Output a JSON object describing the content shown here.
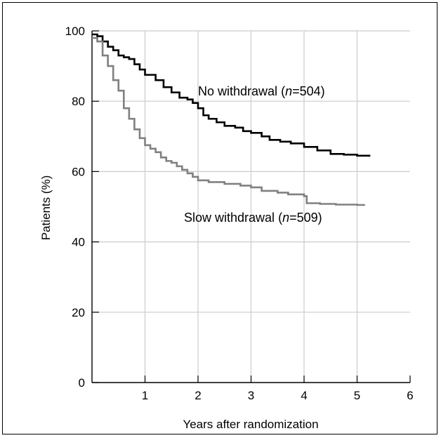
{
  "chart_data": {
    "type": "line",
    "xlabel": "Years after randomization",
    "ylabel": "Patients (%)",
    "xlim": [
      0,
      6
    ],
    "ylim": [
      0,
      100
    ],
    "x_ticks": [
      "1",
      "2",
      "3",
      "4",
      "5",
      "6"
    ],
    "y_ticks": [
      "0",
      "20",
      "40",
      "60",
      "80",
      "100"
    ],
    "grid": true,
    "series": [
      {
        "name": "No withdrawal",
        "n": "504",
        "color": "#000000",
        "points": [
          [
            0.0,
            99
          ],
          [
            0.1,
            98.5
          ],
          [
            0.2,
            97
          ],
          [
            0.3,
            95.5
          ],
          [
            0.4,
            94.5
          ],
          [
            0.5,
            93
          ],
          [
            0.6,
            92.5
          ],
          [
            0.7,
            92
          ],
          [
            0.8,
            90.5
          ],
          [
            0.9,
            89
          ],
          [
            1.0,
            87.5
          ],
          [
            1.2,
            86
          ],
          [
            1.35,
            84
          ],
          [
            1.5,
            82.5
          ],
          [
            1.65,
            81
          ],
          [
            1.8,
            80.5
          ],
          [
            1.9,
            79.5
          ],
          [
            2.0,
            78
          ],
          [
            2.1,
            76
          ],
          [
            2.2,
            75
          ],
          [
            2.35,
            74
          ],
          [
            2.5,
            73
          ],
          [
            2.7,
            72.5
          ],
          [
            2.85,
            71.5
          ],
          [
            3.0,
            71
          ],
          [
            3.2,
            70
          ],
          [
            3.35,
            69
          ],
          [
            3.55,
            68.5
          ],
          [
            3.75,
            68
          ],
          [
            4.0,
            67
          ],
          [
            4.25,
            66
          ],
          [
            4.5,
            65
          ],
          [
            4.75,
            64.8
          ],
          [
            5.0,
            64.5
          ],
          [
            5.25,
            64.5
          ]
        ]
      },
      {
        "name": "Slow withdrawal",
        "n": "509",
        "color": "#808080",
        "points": [
          [
            0.0,
            98
          ],
          [
            0.1,
            97
          ],
          [
            0.2,
            93
          ],
          [
            0.3,
            90
          ],
          [
            0.4,
            86
          ],
          [
            0.5,
            83
          ],
          [
            0.6,
            78
          ],
          [
            0.7,
            75
          ],
          [
            0.8,
            72
          ],
          [
            0.9,
            69.5
          ],
          [
            1.0,
            67.5
          ],
          [
            1.1,
            66.5
          ],
          [
            1.2,
            65.5
          ],
          [
            1.3,
            64
          ],
          [
            1.4,
            63
          ],
          [
            1.5,
            62.5
          ],
          [
            1.6,
            61.5
          ],
          [
            1.7,
            60.5
          ],
          [
            1.8,
            59.5
          ],
          [
            1.9,
            58.5
          ],
          [
            2.0,
            57.5
          ],
          [
            2.2,
            57
          ],
          [
            2.5,
            56.5
          ],
          [
            2.8,
            56
          ],
          [
            3.0,
            55.5
          ],
          [
            3.2,
            54.5
          ],
          [
            3.5,
            54
          ],
          [
            3.7,
            53.5
          ],
          [
            4.0,
            53
          ],
          [
            4.05,
            51
          ],
          [
            4.3,
            50.8
          ],
          [
            4.6,
            50.6
          ],
          [
            5.0,
            50.5
          ],
          [
            5.15,
            50.5
          ]
        ]
      }
    ]
  }
}
